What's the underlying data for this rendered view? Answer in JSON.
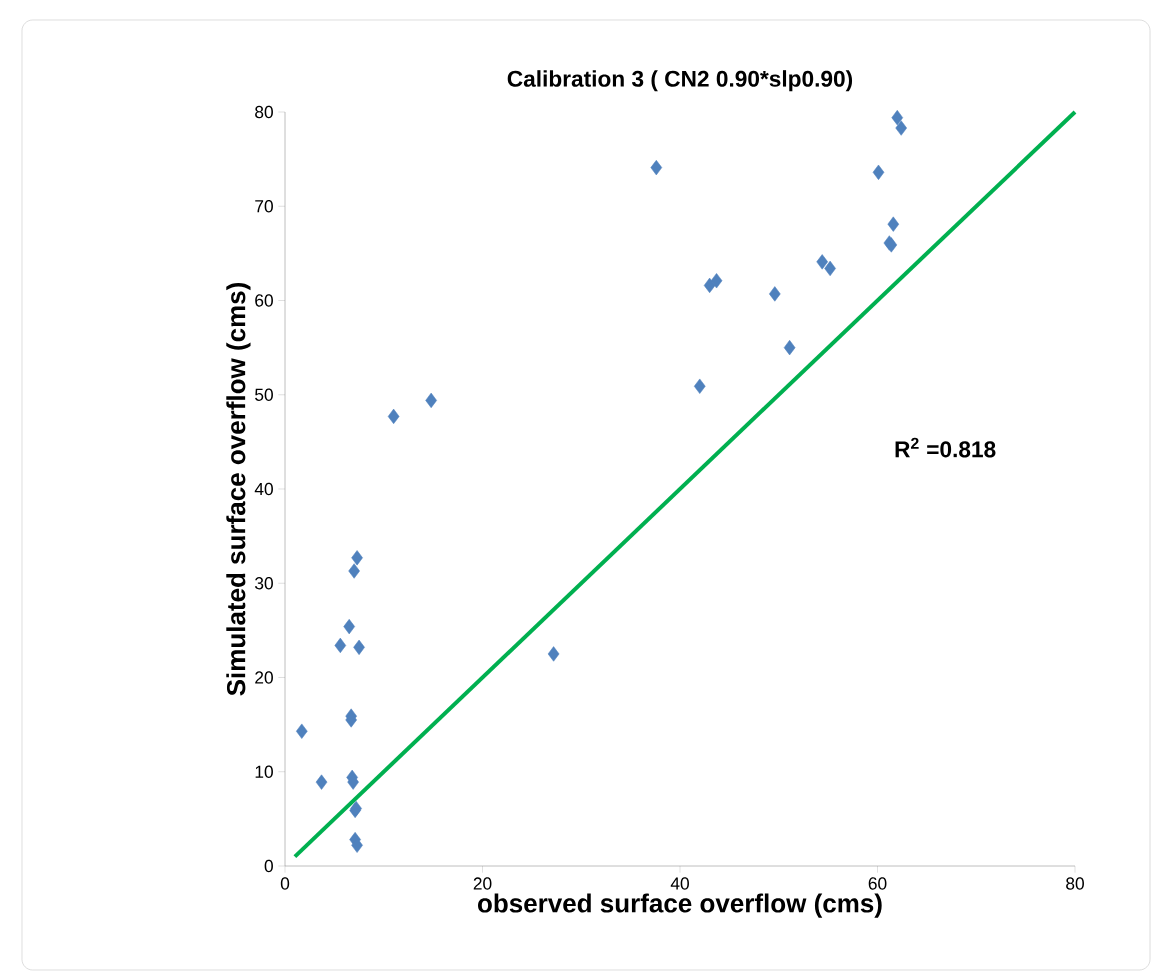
{
  "chart_data": {
    "type": "scatter",
    "title": "Calibration 3 ( CN2 0.90*slp0.90)",
    "xlabel": "observed surface overflow (cms)",
    "ylabel": "Simulated surface overflow (cms)",
    "annotations": [
      "R$^{2}$ =0.818"
    ],
    "marker": "diamond",
    "grid": false,
    "xlim": [
      0,
      80
    ],
    "ylim": [
      0,
      80
    ],
    "xticks": [
      0,
      20,
      40,
      60,
      80
    ],
    "yticks": [
      0,
      10,
      20,
      30,
      40,
      50,
      60,
      70,
      80
    ],
    "series": [
      {
        "color": "#4f81bd",
        "x": [
          1.7,
          3.7,
          5.6,
          6.5,
          6.7,
          6.7,
          6.8,
          6.9,
          7.1,
          7.2,
          7.1,
          7.3,
          7.0,
          7.3,
          7.5,
          11.0,
          14.8,
          27.2,
          37.6,
          42.0,
          43.0,
          43.7,
          49.6,
          51.1,
          54.4,
          55.2,
          60.1,
          61.2,
          61.6,
          61.4,
          62.0,
          62.4
        ],
        "values": [
          14.3,
          8.9,
          23.4,
          25.4,
          15.9,
          15.5,
          9.4,
          8.9,
          5.9,
          6.1,
          2.8,
          2.2,
          31.3,
          32.7,
          23.2,
          47.7,
          49.4,
          22.5,
          74.1,
          50.9,
          61.6,
          62.1,
          60.7,
          55.0,
          64.1,
          63.4,
          73.6,
          66.1,
          68.1,
          65.9,
          79.4,
          78.3
        ]
      },
      {
        "type": "line",
        "color": "#00b050",
        "marker": "none",
        "x": [
          1,
          80
        ],
        "values": [
          1,
          80
        ]
      }
    ]
  }
}
